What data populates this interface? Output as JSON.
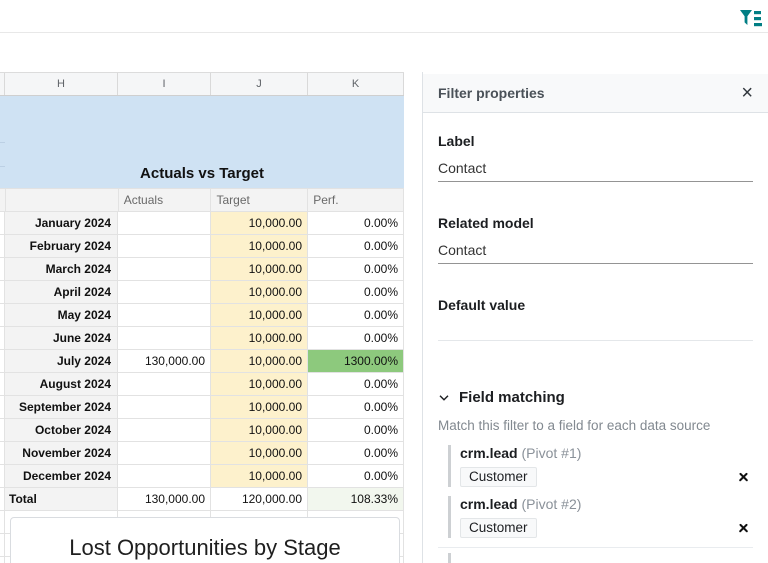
{
  "topbar": {
    "filter_tool": "filter-list"
  },
  "sheet": {
    "column_headers": [
      "H",
      "I",
      "J",
      "K"
    ],
    "banner_title": "Actuals vs Target",
    "subheader": {
      "actuals": "Actuals",
      "target": "Target",
      "perf": "Perf."
    },
    "rows": [
      {
        "label": "January 2024",
        "actuals": "",
        "target": "10,000.00",
        "perf": "0.00%",
        "highlight": false
      },
      {
        "label": "February 2024",
        "actuals": "",
        "target": "10,000.00",
        "perf": "0.00%",
        "highlight": false
      },
      {
        "label": "March 2024",
        "actuals": "",
        "target": "10,000.00",
        "perf": "0.00%",
        "highlight": false
      },
      {
        "label": "April 2024",
        "actuals": "",
        "target": "10,000.00",
        "perf": "0.00%",
        "highlight": false
      },
      {
        "label": "May 2024",
        "actuals": "",
        "target": "10,000.00",
        "perf": "0.00%",
        "highlight": false
      },
      {
        "label": "June 2024",
        "actuals": "",
        "target": "10,000.00",
        "perf": "0.00%",
        "highlight": false
      },
      {
        "label": "July 2024",
        "actuals": "130,000.00",
        "target": "10,000.00",
        "perf": "1300.00%",
        "highlight": true
      },
      {
        "label": "August 2024",
        "actuals": "",
        "target": "10,000.00",
        "perf": "0.00%",
        "highlight": false
      },
      {
        "label": "September 2024",
        "actuals": "",
        "target": "10,000.00",
        "perf": "0.00%",
        "highlight": false
      },
      {
        "label": "October 2024",
        "actuals": "",
        "target": "10,000.00",
        "perf": "0.00%",
        "highlight": false
      },
      {
        "label": "November 2024",
        "actuals": "",
        "target": "10,000.00",
        "perf": "0.00%",
        "highlight": false
      },
      {
        "label": "December 2024",
        "actuals": "",
        "target": "10,000.00",
        "perf": "0.00%",
        "highlight": false
      }
    ],
    "total": {
      "label": "Total",
      "actuals": "130,000.00",
      "target": "120,000.00",
      "perf": "108.33%"
    },
    "chart_title": "Lost Opportunities by Stage"
  },
  "panel": {
    "title": "Filter properties",
    "label_field": {
      "label": "Label",
      "value": "Contact"
    },
    "related_model_field": {
      "label": "Related model",
      "value": "Contact"
    },
    "default_value_field": {
      "label": "Default value",
      "value": ""
    },
    "field_matching": {
      "title": "Field matching",
      "description": "Match this filter to a field for each data source",
      "matches": [
        {
          "model": "crm.lead",
          "source": "(Pivot #1)",
          "field": "Customer"
        },
        {
          "model": "crm.lead",
          "source": "(Pivot #2)",
          "field": "Customer"
        }
      ]
    }
  },
  "colors": {
    "accent_teal": "#017e84",
    "banner_blue": "#cfe2f3",
    "target_yellow": "#fdf1cc",
    "perf_green": "#8dc97d",
    "total_green": "#f2f7ee",
    "label_gray": "#f3f3f3"
  }
}
